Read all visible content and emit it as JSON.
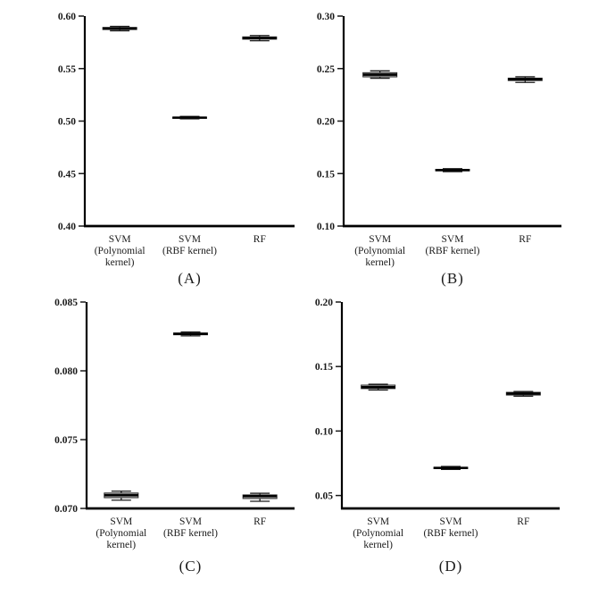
{
  "page": {
    "background": "#ffffff"
  },
  "colors": {
    "axis": "#000000",
    "tick": "#1a1a1a",
    "box_fill": "#b4b4b4",
    "box_stroke": "#2a2a2a",
    "median": "#000000",
    "whisker": "#1a1a1a",
    "text": "#1a1a1a"
  },
  "categories": [
    {
      "key": "svm-polynomial",
      "label": "SVM (Polynomial kernel)",
      "lines": [
        "SVM",
        "(Polynomial",
        "kernel)"
      ]
    },
    {
      "key": "svm-rbf",
      "label": "SVM (RBF kernel)",
      "lines": [
        "SVM",
        "(RBF kernel)"
      ]
    },
    {
      "key": "rf",
      "label": "RF",
      "lines": [
        "RF"
      ]
    }
  ],
  "chart_data": [
    {
      "type": "box",
      "caption": "(A)",
      "categories": [
        "SVM (Polynomial kernel)",
        "SVM (RBF kernel)",
        "RF"
      ],
      "ylim": [
        0.4,
        0.6
      ],
      "ytick_values": [
        0.4,
        0.45,
        0.5,
        0.55,
        0.6
      ],
      "ytick_labels": [
        "0.40",
        "0.45",
        "0.50",
        "0.55",
        "0.60"
      ],
      "series": [
        {
          "category": "SVM (Polynomial kernel)",
          "min": 0.586,
          "q1": 0.5872,
          "median": 0.5882,
          "q3": 0.5892,
          "max": 0.5902
        },
        {
          "category": "SVM (RBF kernel)",
          "min": 0.5022,
          "q1": 0.5028,
          "median": 0.5033,
          "q3": 0.5038,
          "max": 0.5044
        },
        {
          "category": "RF",
          "min": 0.5765,
          "q1": 0.578,
          "median": 0.579,
          "q3": 0.5802,
          "max": 0.5815
        }
      ]
    },
    {
      "type": "box",
      "caption": "(B)",
      "categories": [
        "SVM (Polynomial kernel)",
        "SVM (RBF kernel)",
        "RF"
      ],
      "ylim": [
        0.1,
        0.3
      ],
      "ytick_values": [
        0.1,
        0.15,
        0.2,
        0.25,
        0.3
      ],
      "ytick_labels": [
        "0.10",
        "0.15",
        "0.20",
        "0.25",
        "0.30"
      ],
      "series": [
        {
          "category": "SVM (Polynomial kernel)",
          "min": 0.2408,
          "q1": 0.2421,
          "median": 0.2442,
          "q3": 0.2461,
          "max": 0.2478
        },
        {
          "category": "SVM (RBF kernel)",
          "min": 0.1518,
          "q1": 0.1526,
          "median": 0.1533,
          "q3": 0.154,
          "max": 0.1547
        },
        {
          "category": "RF",
          "min": 0.2368,
          "q1": 0.2386,
          "median": 0.2398,
          "q3": 0.2409,
          "max": 0.2422
        }
      ]
    },
    {
      "type": "box",
      "caption": "(C)",
      "categories": [
        "SVM (Polynomial kernel)",
        "SVM (RBF kernel)",
        "RF"
      ],
      "ylim": [
        0.07,
        0.085
      ],
      "ytick_values": [
        0.07,
        0.075,
        0.08,
        0.085
      ],
      "ytick_labels": [
        "0.070",
        "0.075",
        "0.080",
        "0.085"
      ],
      "series": [
        {
          "category": "SVM (Polynomial kernel)",
          "min": 0.0706,
          "q1": 0.07078,
          "median": 0.07096,
          "q3": 0.07112,
          "max": 0.07126
        },
        {
          "category": "SVM (RBF kernel)",
          "min": 0.08254,
          "q1": 0.08262,
          "median": 0.08268,
          "q3": 0.08275,
          "max": 0.08282
        },
        {
          "category": "RF",
          "min": 0.07052,
          "q1": 0.07072,
          "median": 0.0709,
          "q3": 0.07098,
          "max": 0.0711
        }
      ]
    },
    {
      "type": "box",
      "caption": "(D)",
      "categories": [
        "SVM (Polynomial kernel)",
        "SVM (RBF kernel)",
        "RF"
      ],
      "ylim": [
        0.04,
        0.2
      ],
      "ytick_values": [
        0.05,
        0.1,
        0.15,
        0.2
      ],
      "ytick_labels": [
        "0.05",
        "0.10",
        "0.15",
        "0.20"
      ],
      "series": [
        {
          "category": "SVM (Polynomial kernel)",
          "min": 0.1318,
          "q1": 0.1329,
          "median": 0.134,
          "q3": 0.1356,
          "max": 0.1363
        },
        {
          "category": "SVM (RBF kernel)",
          "min": 0.0702,
          "q1": 0.0709,
          "median": 0.0714,
          "q3": 0.0719,
          "max": 0.0725
        },
        {
          "category": "RF",
          "min": 0.127,
          "q1": 0.1279,
          "median": 0.129,
          "q3": 0.13,
          "max": 0.1306
        }
      ]
    }
  ]
}
